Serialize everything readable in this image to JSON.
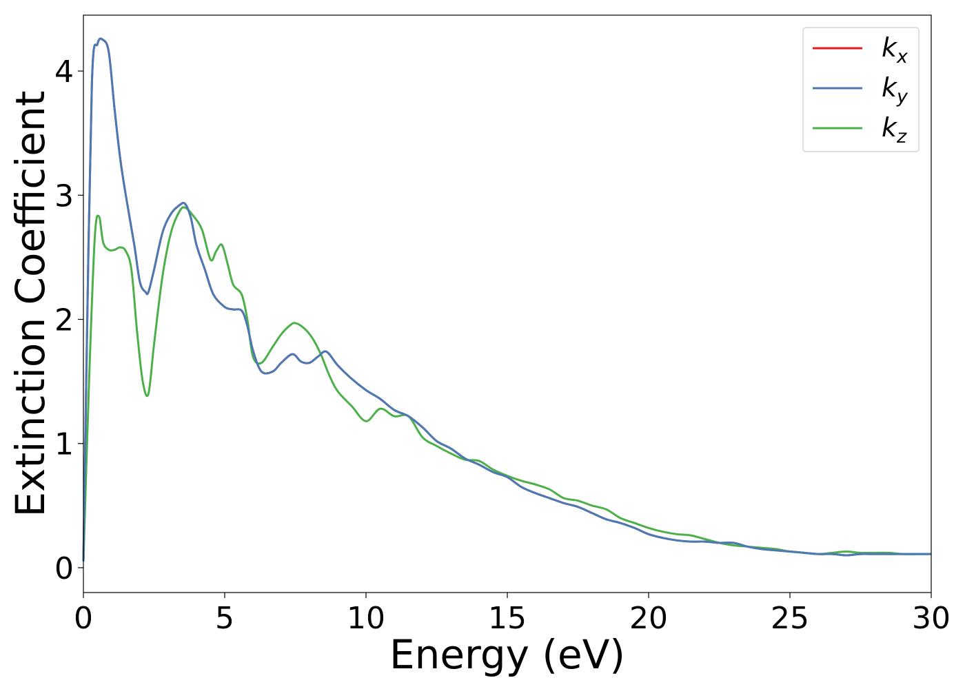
{
  "chart_data": {
    "type": "line",
    "xlabel": "Energy (eV)",
    "ylabel": "Extinction Coefficient",
    "xlim": [
      0,
      30
    ],
    "ylim": [
      -0.2,
      4.45
    ],
    "xticks": [
      "0",
      "5",
      "10",
      "15",
      "20",
      "25",
      "30"
    ],
    "yticks": [
      "0",
      "1",
      "2",
      "3",
      "4"
    ],
    "grid": false,
    "legend_position": "top-right",
    "legend": [
      {
        "main": "k",
        "sub": "x",
        "color": "#e41a1c"
      },
      {
        "main": "k",
        "sub": "y",
        "color": "#4a7ab5"
      },
      {
        "main": "k",
        "sub": "z",
        "color": "#4daf4a"
      }
    ],
    "series": [
      {
        "name": "k_x",
        "color": "#e41a1c",
        "x": [
          0,
          0.1,
          0.3,
          0.5,
          0.7,
          0.9,
          1.1,
          1.3,
          1.5,
          1.8,
          2.0,
          2.2,
          2.3,
          2.5,
          2.8,
          3.1,
          3.4,
          3.6,
          3.8,
          4.0,
          4.3,
          4.6,
          5.0,
          5.3,
          5.6,
          5.8,
          6.0,
          6.3,
          6.7,
          7.0,
          7.4,
          7.7,
          8.0,
          8.3,
          8.6,
          9.0,
          9.5,
          10.0,
          10.5,
          11.0,
          11.5,
          12.0,
          12.5,
          13.0,
          13.5,
          14.0,
          14.5,
          15.0,
          15.5,
          16.0,
          16.5,
          17.0,
          17.5,
          18.0,
          18.5,
          19.0,
          19.5,
          20.0,
          20.5,
          21.0,
          21.5,
          22.0,
          22.5,
          23.0,
          23.5,
          24.0,
          24.5,
          25.0,
          25.5,
          26.0,
          26.5,
          27.0,
          27.5,
          28.0,
          28.5,
          29.0,
          29.5,
          30.0
        ],
        "y": [
          0.05,
          1.5,
          3.9,
          4.22,
          4.25,
          4.15,
          3.7,
          3.3,
          3.0,
          2.6,
          2.3,
          2.22,
          2.22,
          2.4,
          2.7,
          2.85,
          2.92,
          2.93,
          2.82,
          2.6,
          2.4,
          2.2,
          2.1,
          2.08,
          2.07,
          1.95,
          1.75,
          1.58,
          1.58,
          1.65,
          1.72,
          1.66,
          1.65,
          1.7,
          1.74,
          1.63,
          1.52,
          1.43,
          1.36,
          1.27,
          1.22,
          1.13,
          1.02,
          0.96,
          0.88,
          0.83,
          0.77,
          0.73,
          0.65,
          0.6,
          0.56,
          0.52,
          0.49,
          0.44,
          0.39,
          0.36,
          0.32,
          0.27,
          0.24,
          0.22,
          0.21,
          0.21,
          0.2,
          0.2,
          0.17,
          0.15,
          0.14,
          0.13,
          0.12,
          0.11,
          0.11,
          0.1,
          0.11,
          0.11,
          0.11,
          0.11,
          0.11,
          0.11
        ]
      },
      {
        "name": "k_y",
        "color": "#4a7ab5",
        "x": [
          0,
          0.1,
          0.3,
          0.5,
          0.7,
          0.9,
          1.1,
          1.3,
          1.5,
          1.8,
          2.0,
          2.2,
          2.3,
          2.5,
          2.8,
          3.1,
          3.4,
          3.6,
          3.8,
          4.0,
          4.3,
          4.6,
          5.0,
          5.3,
          5.6,
          5.8,
          6.0,
          6.3,
          6.7,
          7.0,
          7.4,
          7.7,
          8.0,
          8.3,
          8.6,
          9.0,
          9.5,
          10.0,
          10.5,
          11.0,
          11.5,
          12.0,
          12.5,
          13.0,
          13.5,
          14.0,
          14.5,
          15.0,
          15.5,
          16.0,
          16.5,
          17.0,
          17.5,
          18.0,
          18.5,
          19.0,
          19.5,
          20.0,
          20.5,
          21.0,
          21.5,
          22.0,
          22.5,
          23.0,
          23.5,
          24.0,
          24.5,
          25.0,
          25.5,
          26.0,
          26.5,
          27.0,
          27.5,
          28.0,
          28.5,
          29.0,
          29.5,
          30.0
        ],
        "y": [
          0.05,
          1.5,
          3.9,
          4.22,
          4.25,
          4.15,
          3.7,
          3.3,
          3.0,
          2.6,
          2.3,
          2.22,
          2.22,
          2.4,
          2.7,
          2.85,
          2.92,
          2.93,
          2.82,
          2.6,
          2.4,
          2.2,
          2.1,
          2.08,
          2.07,
          1.95,
          1.75,
          1.58,
          1.58,
          1.65,
          1.72,
          1.66,
          1.65,
          1.7,
          1.74,
          1.63,
          1.52,
          1.43,
          1.36,
          1.27,
          1.22,
          1.13,
          1.02,
          0.96,
          0.88,
          0.83,
          0.77,
          0.73,
          0.65,
          0.6,
          0.56,
          0.52,
          0.49,
          0.44,
          0.39,
          0.36,
          0.32,
          0.27,
          0.24,
          0.22,
          0.21,
          0.21,
          0.2,
          0.2,
          0.17,
          0.15,
          0.14,
          0.13,
          0.12,
          0.11,
          0.11,
          0.1,
          0.11,
          0.11,
          0.11,
          0.11,
          0.11,
          0.11
        ]
      },
      {
        "name": "k_z",
        "color": "#4daf4a",
        "x": [
          0,
          0.2,
          0.4,
          0.55,
          0.7,
          0.9,
          1.1,
          1.3,
          1.5,
          1.7,
          1.9,
          2.1,
          2.3,
          2.5,
          2.8,
          3.1,
          3.4,
          3.6,
          3.9,
          4.2,
          4.5,
          4.7,
          4.9,
          5.1,
          5.3,
          5.6,
          5.8,
          6.0,
          6.3,
          6.7,
          7.0,
          7.3,
          7.5,
          7.8,
          8.1,
          8.4,
          8.7,
          9.0,
          9.5,
          10.0,
          10.5,
          11.0,
          11.5,
          12.0,
          12.5,
          13.0,
          13.5,
          14.0,
          14.5,
          15.0,
          15.5,
          16.0,
          16.5,
          17.0,
          17.5,
          18.0,
          18.5,
          19.0,
          19.5,
          20.0,
          20.5,
          21.0,
          21.5,
          22.0,
          22.5,
          23.0,
          23.5,
          24.0,
          24.5,
          25.0,
          25.5,
          26.0,
          26.5,
          27.0,
          27.5,
          28.0,
          28.5,
          29.0,
          29.5,
          30.0
        ],
        "y": [
          0.05,
          1.5,
          2.65,
          2.83,
          2.62,
          2.56,
          2.56,
          2.58,
          2.55,
          2.4,
          1.9,
          1.5,
          1.4,
          1.8,
          2.35,
          2.7,
          2.87,
          2.9,
          2.83,
          2.72,
          2.48,
          2.55,
          2.6,
          2.45,
          2.28,
          2.2,
          2.0,
          1.7,
          1.65,
          1.78,
          1.88,
          1.95,
          1.97,
          1.93,
          1.85,
          1.72,
          1.55,
          1.42,
          1.3,
          1.18,
          1.28,
          1.22,
          1.22,
          1.05,
          0.98,
          0.92,
          0.87,
          0.86,
          0.79,
          0.74,
          0.7,
          0.67,
          0.63,
          0.56,
          0.54,
          0.5,
          0.47,
          0.4,
          0.36,
          0.32,
          0.29,
          0.27,
          0.26,
          0.23,
          0.2,
          0.18,
          0.17,
          0.16,
          0.15,
          0.13,
          0.12,
          0.11,
          0.12,
          0.13,
          0.12,
          0.12,
          0.12,
          0.11,
          0.11,
          0.11
        ]
      }
    ]
  }
}
